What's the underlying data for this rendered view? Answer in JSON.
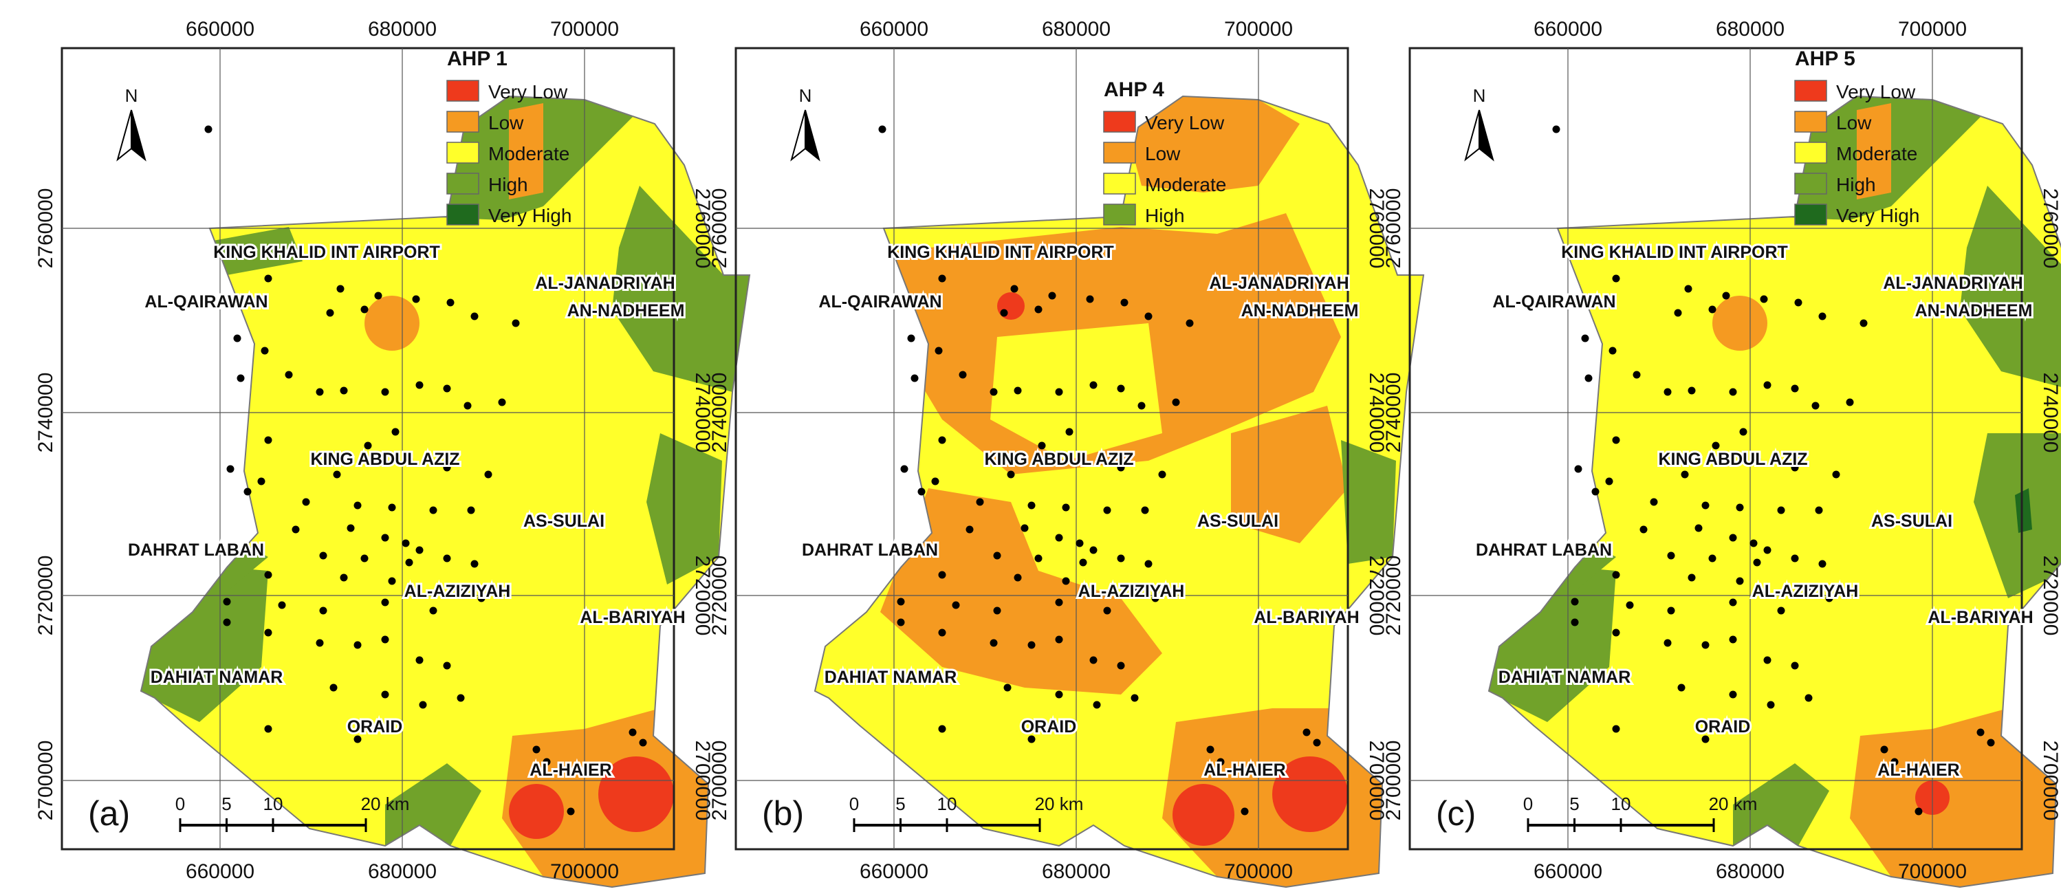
{
  "colors": {
    "Very Low": "#ee3a1c",
    "Low": "#f59a21",
    "Moderate": "#ffff2a",
    "High": "#71a22a",
    "Very High": "#1f6a1e"
  },
  "axis": {
    "x_ticks": [
      "660000",
      "680000",
      "700000"
    ],
    "y_ticks": [
      "2760000",
      "2740000",
      "2720000",
      "2700000"
    ]
  },
  "north_label": "N",
  "scale_bar": {
    "labels": [
      "0",
      "5",
      "10",
      "20 km"
    ]
  },
  "places": [
    {
      "id": "airport",
      "text": "KING KHALID INT AIRPORT"
    },
    {
      "id": "qairawan",
      "text": "AL-QAIRAWAN"
    },
    {
      "id": "janadriyah",
      "text": "AL-JANADRIYAH"
    },
    {
      "id": "nadheem",
      "text": "AN-NADHEEM"
    },
    {
      "id": "abdulaziz",
      "text": "KING ABDUL AZIZ"
    },
    {
      "id": "sulai",
      "text": "AS-SULAI"
    },
    {
      "id": "laban",
      "text": "DAHRAT LABAN"
    },
    {
      "id": "aziziyah",
      "text": "AL-AZIZIYAH"
    },
    {
      "id": "bariyah",
      "text": "AL-BARIYAH"
    },
    {
      "id": "namar",
      "text": "DAHIAT NAMAR"
    },
    {
      "id": "oraid",
      "text": "ORAID"
    },
    {
      "id": "haier",
      "text": "AL-HAIER"
    }
  ],
  "panels": [
    {
      "id": "a",
      "label": "(a)",
      "legend_title": "AHP 1",
      "legend": [
        "Very Low",
        "Low",
        "Moderate",
        "High",
        "Very High"
      ]
    },
    {
      "id": "b",
      "label": "(b)",
      "legend_title": "AHP 4",
      "legend": [
        "Very Low",
        "Low",
        "Moderate",
        "High"
      ]
    },
    {
      "id": "c",
      "label": "(c)",
      "legend_title": "AHP 5",
      "legend": [
        "Very Low",
        "Low",
        "Moderate",
        "High",
        "Very High"
      ]
    }
  ]
}
